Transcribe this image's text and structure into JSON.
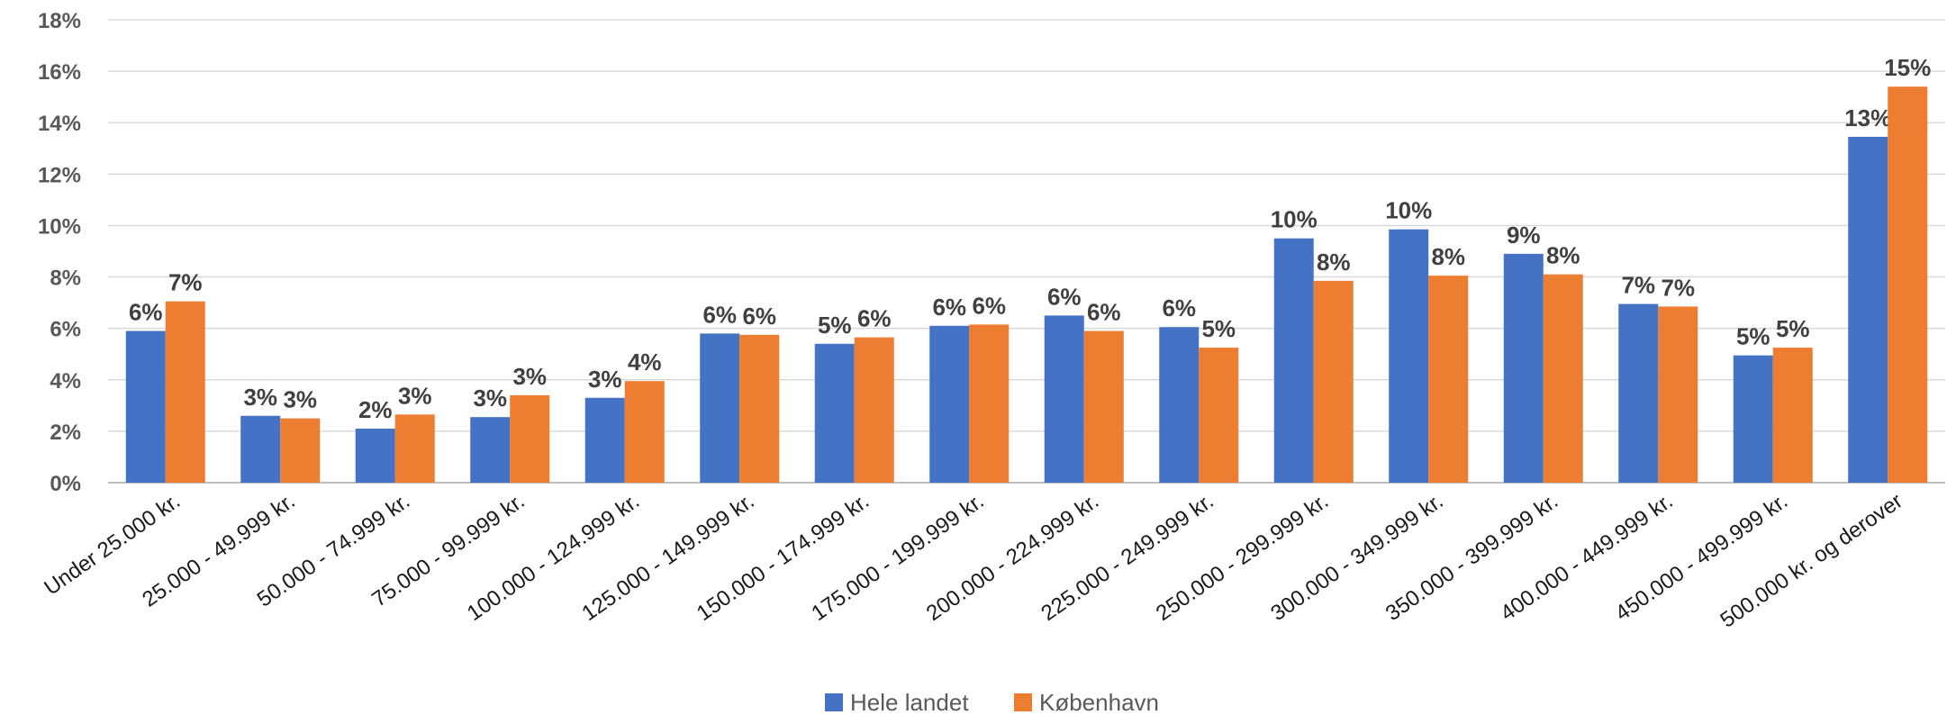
{
  "chart_data": {
    "type": "bar",
    "categories": [
      "Under 25.000 kr.",
      "25.000 - 49.999 kr.",
      "50.000 - 74.999 kr.",
      "75.000 - 99.999 kr.",
      "100.000 - 124.999 kr.",
      "125.000 - 149.999 kr.",
      "150.000 - 174.999 kr.",
      "175.000 - 199.999 kr.",
      "200.000 - 224.999 kr.",
      "225.000 - 249.999 kr.",
      "250.000 - 299.999 kr.",
      "300.000 - 349.999 kr.",
      "350.000 - 399.999 kr.",
      "400.000 - 449.999 kr.",
      "450.000 - 499.999 kr.",
      "500.000 kr. og derover"
    ],
    "series": [
      {
        "name": "Hele landet",
        "color": "#4472C4",
        "values": [
          5.9,
          2.6,
          2.1,
          2.55,
          3.3,
          5.8,
          5.4,
          6.1,
          6.5,
          6.05,
          9.5,
          9.85,
          8.9,
          6.95,
          4.95,
          13.45
        ],
        "labels": [
          "6%",
          "3%",
          "2%",
          "3%",
          "3%",
          "6%",
          "5%",
          "6%",
          "6%",
          "6%",
          "10%",
          "10%",
          "9%",
          "7%",
          "5%",
          "13%"
        ]
      },
      {
        "name": "København",
        "color": "#ED7D31",
        "values": [
          7.05,
          2.5,
          2.65,
          3.4,
          3.95,
          5.75,
          5.65,
          6.15,
          5.9,
          5.25,
          7.85,
          8.05,
          8.1,
          6.85,
          5.25,
          15.4
        ],
        "labels": [
          "7%",
          "3%",
          "3%",
          "3%",
          "4%",
          "6%",
          "6%",
          "6%",
          "6%",
          "5%",
          "8%",
          "8%",
          "8%",
          "7%",
          "5%",
          "15%"
        ]
      }
    ],
    "ylim": [
      0,
      18
    ],
    "yticks": [
      "0%",
      "2%",
      "4%",
      "6%",
      "8%",
      "10%",
      "12%",
      "14%",
      "16%",
      "18%"
    ],
    "ytick_values": [
      0,
      2,
      4,
      6,
      8,
      10,
      12,
      14,
      16,
      18
    ],
    "grid": true,
    "legend": "bottom-center",
    "title": "",
    "xlabel": "",
    "ylabel": ""
  }
}
